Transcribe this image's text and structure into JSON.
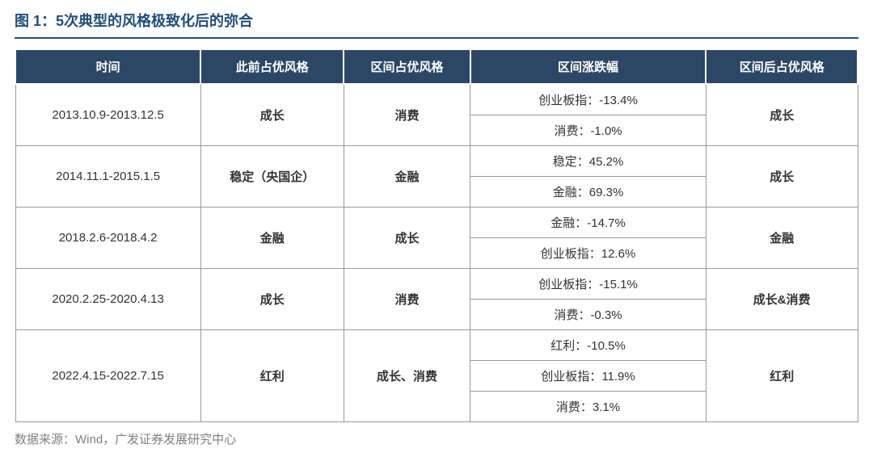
{
  "title": "图 1：5次典型的风格极致化后的弥合",
  "source": "数据来源：Wind，广发证券发展研究中心",
  "columns": {
    "time": "时间",
    "prev": "此前占优风格",
    "period": "区间占优风格",
    "change": "区间涨跌幅",
    "after": "区间后占优风格"
  },
  "rows": [
    {
      "time": "2013.10.9-2013.12.5",
      "prev": "成长",
      "period": "消费",
      "changes": [
        "创业板指：-13.4%",
        "消费：-1.0%"
      ],
      "after": "成长"
    },
    {
      "time": "2014.11.1-2015.1.5",
      "prev": "稳定（央国企）",
      "period": "金融",
      "changes": [
        "稳定：45.2%",
        "金融：69.3%"
      ],
      "after": "成长"
    },
    {
      "time": "2018.2.6-2018.4.2",
      "prev": "金融",
      "period": "成长",
      "changes": [
        "金融：-14.7%",
        "创业板指：12.6%"
      ],
      "after": "金融"
    },
    {
      "time": "2020.2.25-2020.4.13",
      "prev": "成长",
      "period": "消费",
      "changes": [
        "创业板指：-15.1%",
        "消费：-0.3%"
      ],
      "after": "成长&消费"
    },
    {
      "time": "2022.4.15-2022.7.15",
      "prev": "红利",
      "period": "成长、消费",
      "changes": [
        "红利：-10.5%",
        "创业板指：11.9%",
        "消费：3.1%"
      ],
      "after": "红利"
    }
  ],
  "style": {
    "header_bg": "#2c4766",
    "header_text": "#ffffff",
    "title_color": "#1f4e79",
    "border_color": "#999999",
    "source_color": "#808080",
    "cell_text": "#333333",
    "title_fontsize": 18,
    "header_fontsize": 15,
    "cell_fontsize": 15
  }
}
